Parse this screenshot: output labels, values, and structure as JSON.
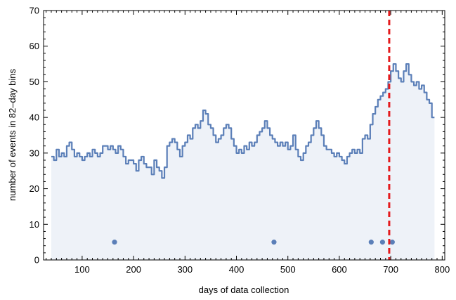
{
  "chart_data": {
    "type": "line",
    "title": "",
    "xlabel": "days of data collection",
    "ylabel": "number of events in 82–day bins",
    "xlim": [
      25,
      805
    ],
    "ylim": [
      0,
      70
    ],
    "xticks": [
      100,
      200,
      300,
      400,
      500,
      600,
      700,
      800
    ],
    "yticks": [
      0,
      10,
      20,
      30,
      40,
      50,
      60,
      70
    ],
    "x_tick_labels": [
      "100",
      "200",
      "300",
      "400",
      "500",
      "600",
      "700",
      "800"
    ],
    "y_tick_labels": [
      "0",
      "10",
      "20",
      "30",
      "40",
      "50",
      "60",
      "70"
    ],
    "grid": false,
    "legend": "none",
    "series": [
      {
        "kind": "filled-step-line",
        "color": "#5b7fb8",
        "fill_color": "#eef2f8",
        "points": [
          [
            40,
            29
          ],
          [
            45,
            28
          ],
          [
            50,
            31
          ],
          [
            55,
            29
          ],
          [
            60,
            30
          ],
          [
            65,
            29
          ],
          [
            70,
            32
          ],
          [
            75,
            33
          ],
          [
            80,
            31
          ],
          [
            85,
            29
          ],
          [
            90,
            30
          ],
          [
            95,
            29
          ],
          [
            100,
            28
          ],
          [
            105,
            29
          ],
          [
            110,
            30
          ],
          [
            115,
            29
          ],
          [
            120,
            31
          ],
          [
            125,
            30
          ],
          [
            130,
            29
          ],
          [
            135,
            30
          ],
          [
            140,
            32
          ],
          [
            145,
            32
          ],
          [
            150,
            31
          ],
          [
            155,
            32
          ],
          [
            160,
            31
          ],
          [
            165,
            30
          ],
          [
            170,
            32
          ],
          [
            175,
            31
          ],
          [
            180,
            29
          ],
          [
            185,
            27
          ],
          [
            190,
            28
          ],
          [
            195,
            28
          ],
          [
            200,
            27
          ],
          [
            205,
            25
          ],
          [
            210,
            28
          ],
          [
            215,
            29
          ],
          [
            220,
            27
          ],
          [
            225,
            26
          ],
          [
            230,
            26
          ],
          [
            235,
            24
          ],
          [
            240,
            28
          ],
          [
            245,
            26
          ],
          [
            250,
            25
          ],
          [
            255,
            23
          ],
          [
            260,
            26
          ],
          [
            265,
            32
          ],
          [
            270,
            33
          ],
          [
            275,
            34
          ],
          [
            280,
            33
          ],
          [
            285,
            31
          ],
          [
            290,
            29
          ],
          [
            295,
            32
          ],
          [
            300,
            33
          ],
          [
            305,
            35
          ],
          [
            310,
            34
          ],
          [
            315,
            37
          ],
          [
            320,
            38
          ],
          [
            325,
            37
          ],
          [
            330,
            39
          ],
          [
            335,
            42
          ],
          [
            340,
            41
          ],
          [
            345,
            38
          ],
          [
            350,
            37
          ],
          [
            355,
            35
          ],
          [
            360,
            33
          ],
          [
            365,
            34
          ],
          [
            370,
            35
          ],
          [
            375,
            37
          ],
          [
            380,
            38
          ],
          [
            385,
            37
          ],
          [
            390,
            34
          ],
          [
            395,
            32
          ],
          [
            400,
            30
          ],
          [
            405,
            31
          ],
          [
            410,
            30
          ],
          [
            415,
            32
          ],
          [
            420,
            31
          ],
          [
            425,
            33
          ],
          [
            430,
            32
          ],
          [
            435,
            33
          ],
          [
            440,
            35
          ],
          [
            445,
            36
          ],
          [
            450,
            37
          ],
          [
            455,
            39
          ],
          [
            460,
            37
          ],
          [
            465,
            35
          ],
          [
            470,
            34
          ],
          [
            475,
            33
          ],
          [
            480,
            32
          ],
          [
            485,
            33
          ],
          [
            490,
            32
          ],
          [
            495,
            33
          ],
          [
            500,
            31
          ],
          [
            505,
            32
          ],
          [
            510,
            35
          ],
          [
            515,
            31
          ],
          [
            520,
            29
          ],
          [
            525,
            28
          ],
          [
            530,
            30
          ],
          [
            535,
            32
          ],
          [
            540,
            33
          ],
          [
            545,
            35
          ],
          [
            550,
            37
          ],
          [
            555,
            39
          ],
          [
            560,
            37
          ],
          [
            565,
            35
          ],
          [
            570,
            32
          ],
          [
            575,
            31
          ],
          [
            580,
            31
          ],
          [
            585,
            30
          ],
          [
            590,
            29
          ],
          [
            595,
            30
          ],
          [
            600,
            29
          ],
          [
            605,
            28
          ],
          [
            610,
            27
          ],
          [
            615,
            29
          ],
          [
            620,
            30
          ],
          [
            625,
            31
          ],
          [
            630,
            30
          ],
          [
            635,
            31
          ],
          [
            640,
            30
          ],
          [
            645,
            34
          ],
          [
            650,
            35
          ],
          [
            655,
            34
          ],
          [
            660,
            38
          ],
          [
            665,
            41
          ],
          [
            670,
            43
          ],
          [
            675,
            45
          ],
          [
            680,
            46
          ],
          [
            685,
            47
          ],
          [
            690,
            48
          ],
          [
            695,
            50
          ],
          [
            700,
            53
          ],
          [
            705,
            55
          ],
          [
            710,
            53
          ],
          [
            715,
            51
          ],
          [
            720,
            50
          ],
          [
            725,
            53
          ],
          [
            730,
            55
          ],
          [
            735,
            52
          ],
          [
            740,
            50
          ],
          [
            745,
            49
          ],
          [
            750,
            50
          ],
          [
            755,
            48
          ],
          [
            760,
            49
          ],
          [
            765,
            47
          ],
          [
            770,
            45
          ],
          [
            775,
            44
          ],
          [
            780,
            40
          ],
          [
            785,
            40
          ]
        ]
      },
      {
        "kind": "scatter",
        "color": "#5b7fb8",
        "points": [
          [
            163,
            5
          ],
          [
            473,
            5
          ],
          [
            662,
            5
          ],
          [
            684,
            5
          ],
          [
            703,
            5
          ]
        ]
      }
    ],
    "annotations": [
      {
        "kind": "vertical-dashed-line",
        "x": 697,
        "color": "#e41a1c"
      }
    ]
  }
}
